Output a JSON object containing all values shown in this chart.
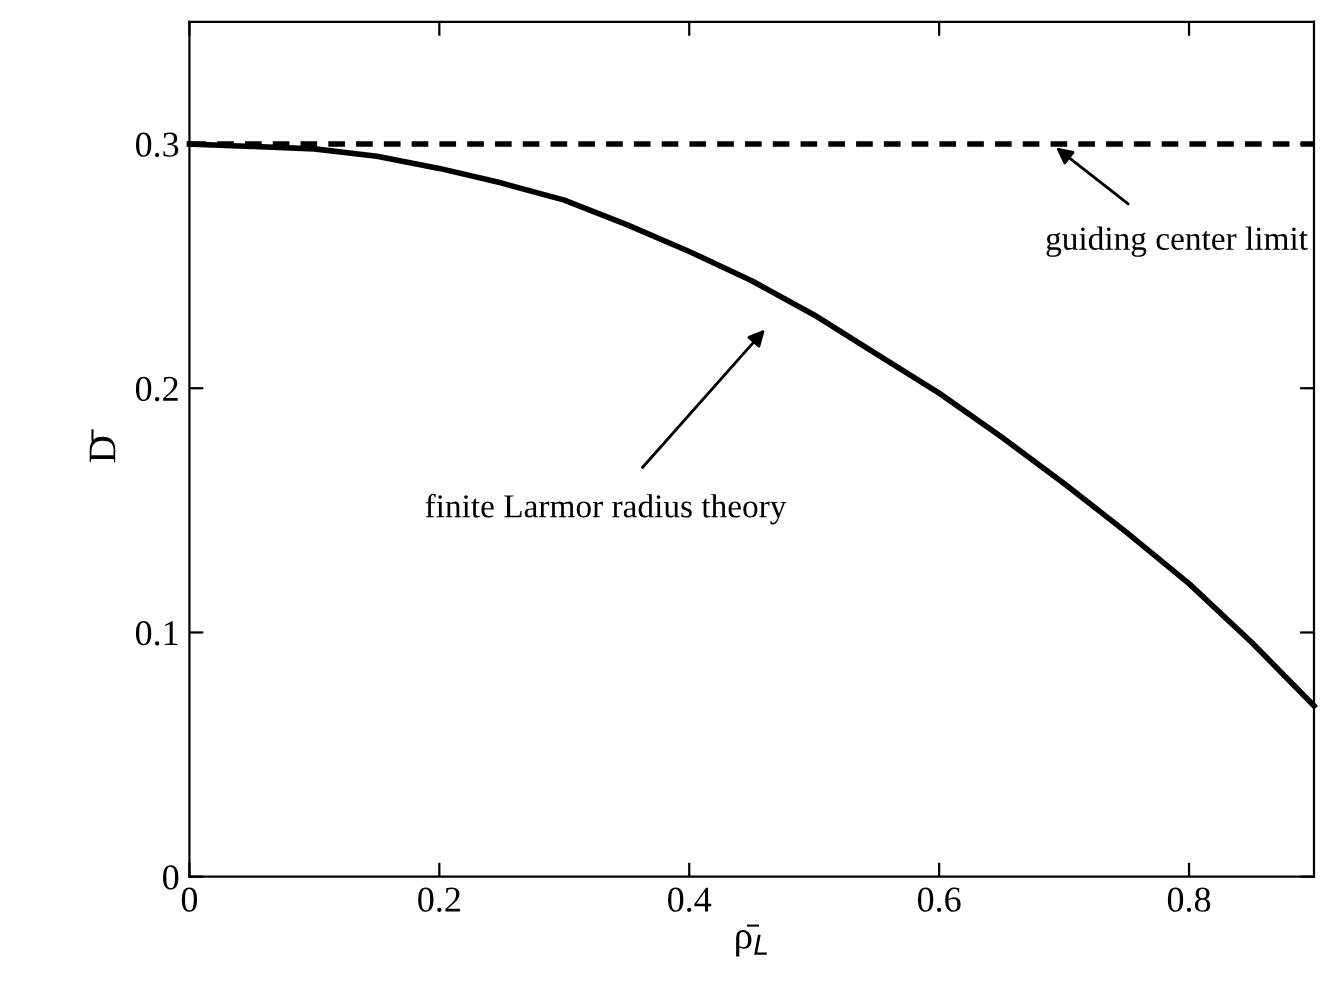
{
  "chart_data": {
    "type": "line",
    "xlabel": "ρ̄$_{L}$",
    "ylabel": "D̄",
    "x": [
      0,
      0.05,
      0.1,
      0.15,
      0.2,
      0.25,
      0.3,
      0.35,
      0.4,
      0.45,
      0.5,
      0.55,
      0.6,
      0.65,
      0.7,
      0.75,
      0.8,
      0.85,
      0.9
    ],
    "series": [
      {
        "color": "#000000",
        "values": [
          0.3,
          0.299,
          0.298,
          0.295,
          0.29,
          0.284,
          0.277,
          0.267,
          0.256,
          0.244,
          0.23,
          0.214,
          0.198,
          0.18,
          0.161,
          0.141,
          0.12,
          0.096,
          0.07
        ]
      }
    ],
    "ref_lines": [
      {
        "axis": "y",
        "value": 0.3,
        "color": "#000000",
        "line_style": "dashed"
      }
    ],
    "annotations": [
      {
        "text": "guiding center limit",
        "x": 0.69,
        "y": 0.3
      },
      "finite Larmor radius theory"
    ],
    "xlim": [
      0,
      0.9
    ],
    "ylim": [
      0,
      0.35
    ],
    "xticks": [
      0,
      0.2,
      0.4,
      0.6,
      0.8
    ],
    "yticks": [
      0,
      0.1,
      0.2,
      0.3
    ],
    "grid": false,
    "legend": false,
    "line_style": "solid",
    "marker": "none"
  }
}
